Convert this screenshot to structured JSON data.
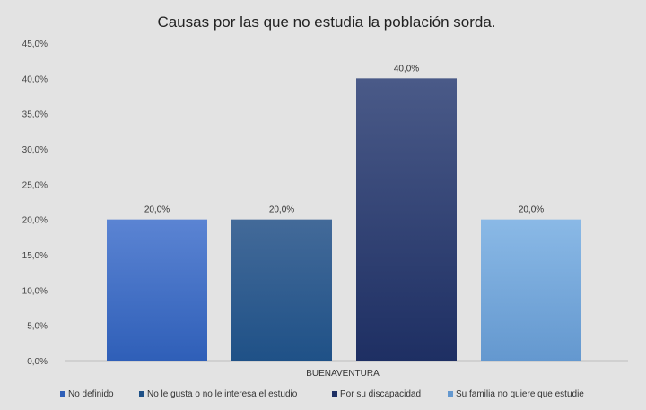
{
  "chart_data": {
    "type": "bar",
    "title": "Causas por las que no estudia la población sorda.",
    "categories": [
      "BUENAVENTURA"
    ],
    "xlabel": "",
    "ylabel": "",
    "ylim": [
      0,
      45
    ],
    "y_ticks": [
      "0,0%",
      "5,0%",
      "10,0%",
      "15,0%",
      "20,0%",
      "25,0%",
      "30,0%",
      "35,0%",
      "40,0%",
      "45,0%"
    ],
    "grid": false,
    "legend_position": "bottom",
    "series": [
      {
        "name": "No definido",
        "values": [
          20
        ],
        "label": "20,0%",
        "color_top": "#5b84d3",
        "color_bottom": "#2f5fb8"
      },
      {
        "name": "No le gusta o no le interesa el estudio",
        "values": [
          20
        ],
        "label": "20,0%",
        "color_top": "#436a99",
        "color_bottom": "#1f5187"
      },
      {
        "name": "Por su discapacidad",
        "values": [
          40
        ],
        "label": "40,0%",
        "color_top": "#4a5a88",
        "color_bottom": "#1e2f63"
      },
      {
        "name": "Su familia no quiere que estudie",
        "values": [
          20
        ],
        "label": "20,0%",
        "color_top": "#8ab9e6",
        "color_bottom": "#6498cf"
      }
    ]
  }
}
